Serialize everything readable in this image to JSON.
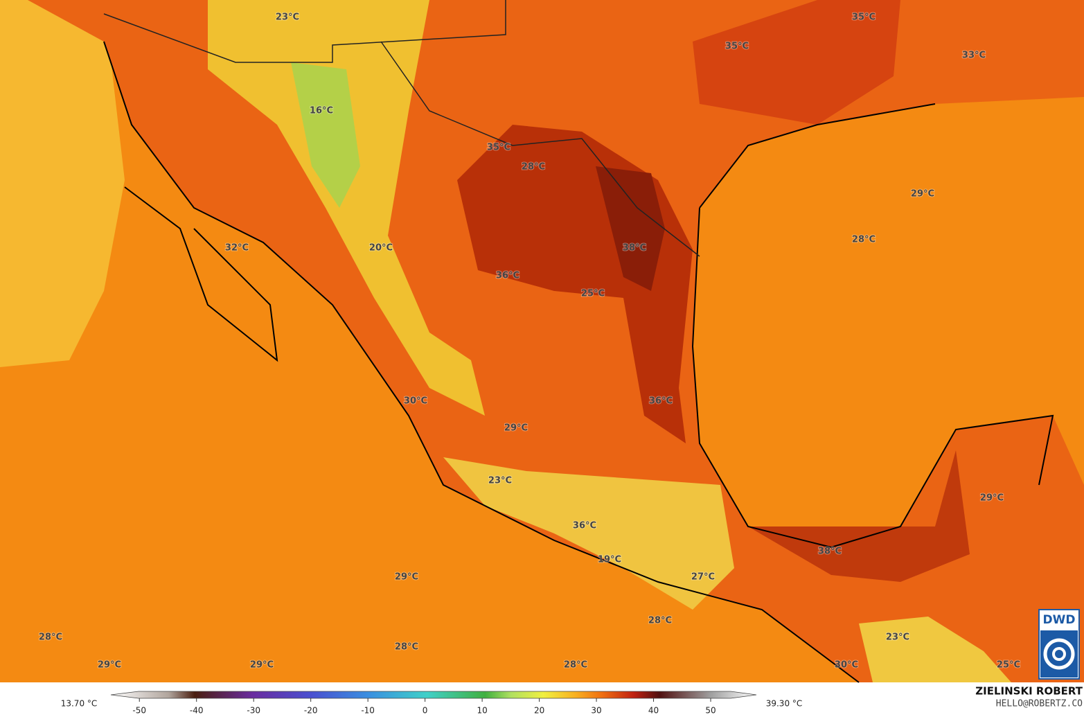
{
  "map_labels": [
    "23°C",
    "35°C",
    "35°C",
    "33°C",
    "16°C",
    "35°C",
    "28°C",
    "29°C",
    "28°C",
    "38°C",
    "32°C",
    "20°C",
    "36°C",
    "25°C",
    "30°C",
    "36°C",
    "29°C",
    "23°C",
    "29°C",
    "36°C",
    "38°C",
    "19°C",
    "27°C",
    "29°C",
    "28°C",
    "28°C",
    "23°C",
    "28°C",
    "29°C",
    "29°C",
    "28°C",
    "30°C",
    "25°C"
  ],
  "colorbar": {
    "min_label": "13.70 °C",
    "max_label": "39.30 °C",
    "lim": [
      -55,
      58
    ],
    "ticks": [
      -50,
      -40,
      -30,
      -20,
      -10,
      0,
      10,
      20,
      30,
      40,
      50
    ]
  },
  "footer": {
    "author": "ZIELINSKI ROBERT",
    "email": "HELLO@ROBERTZ.CO",
    "logo": "DWD"
  }
}
